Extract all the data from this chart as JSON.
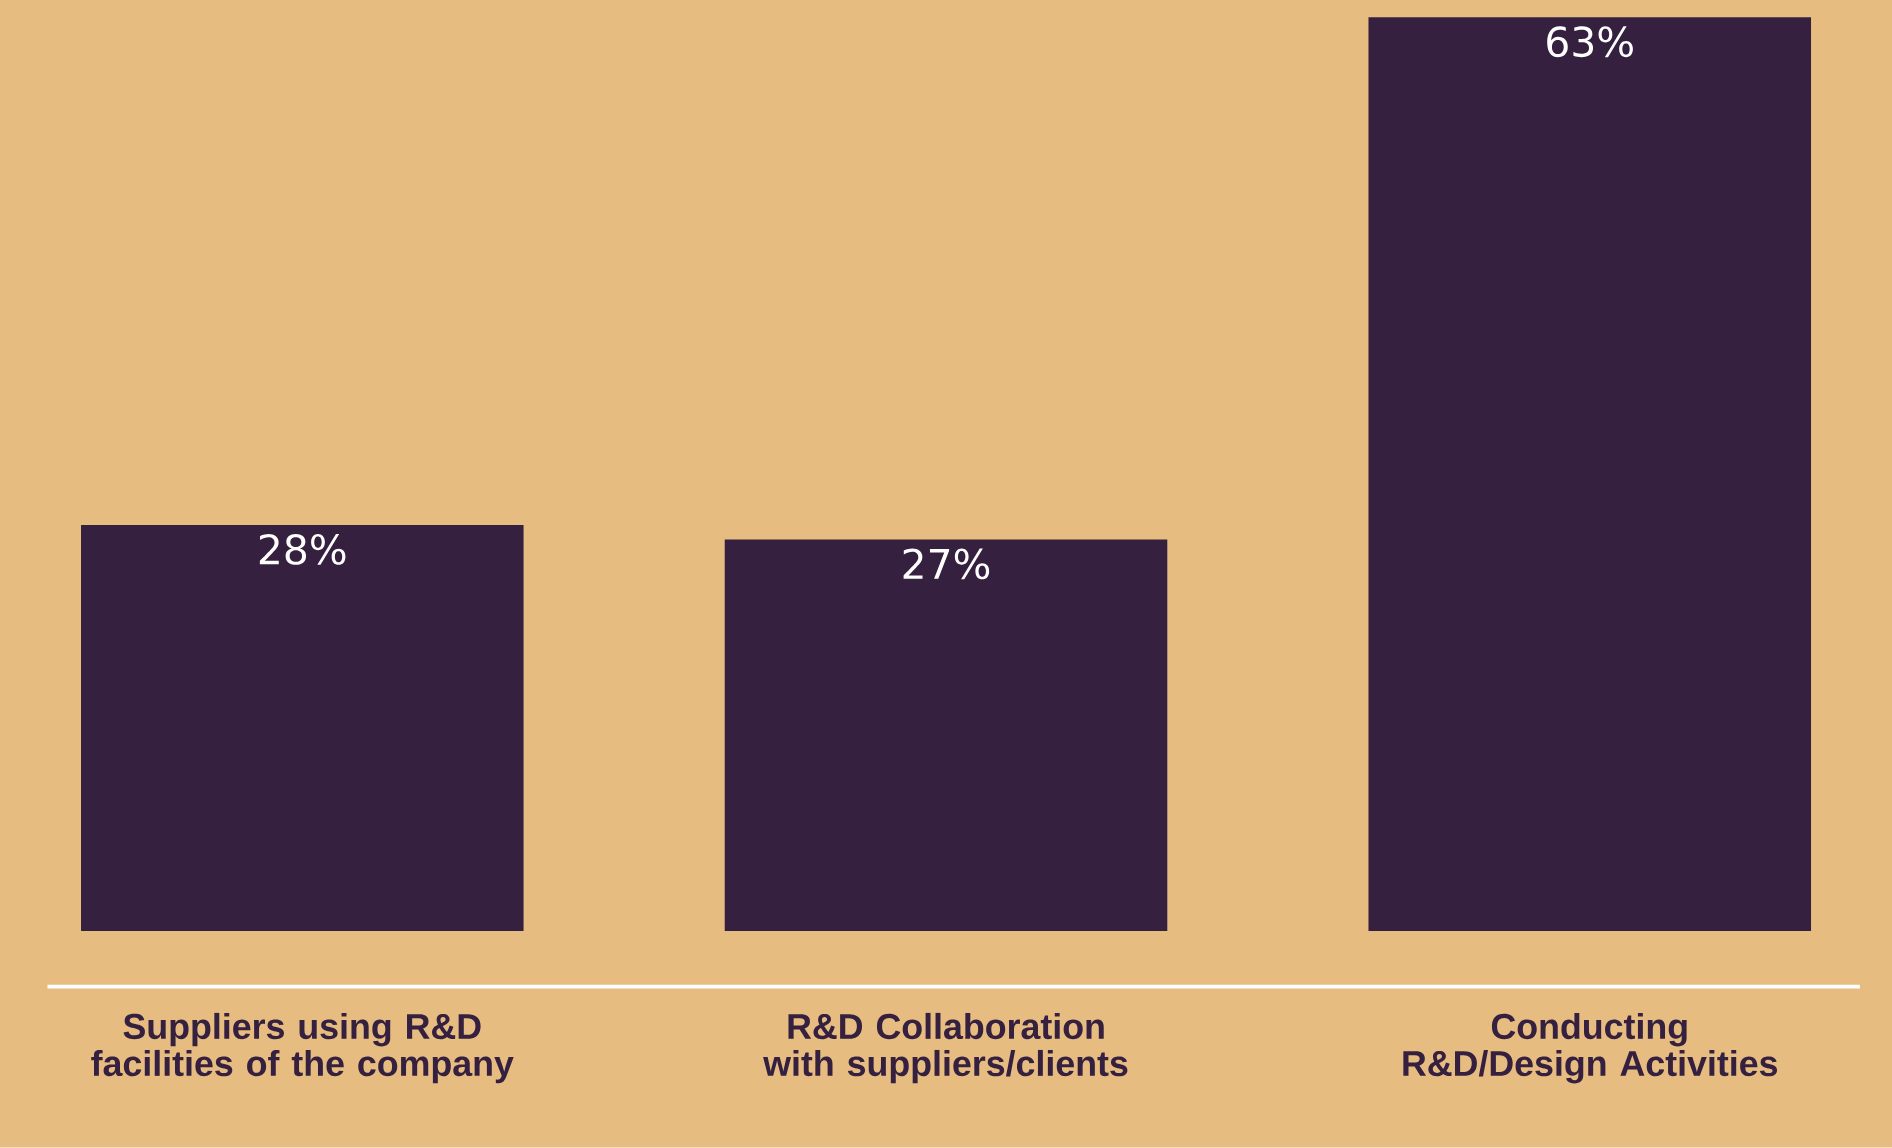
{
  "chart_data": {
    "type": "bar",
    "categories": [
      "Suppliers using R&D facilities of the company",
      "R&D Collaboration with suppliers/clients",
      "Conducting R&D/Design Activities"
    ],
    "values": [
      28,
      27,
      63
    ],
    "value_labels": [
      "28%",
      "27%",
      "63%"
    ],
    "color": "#35203f",
    "ylim": [
      0,
      63
    ]
  }
}
